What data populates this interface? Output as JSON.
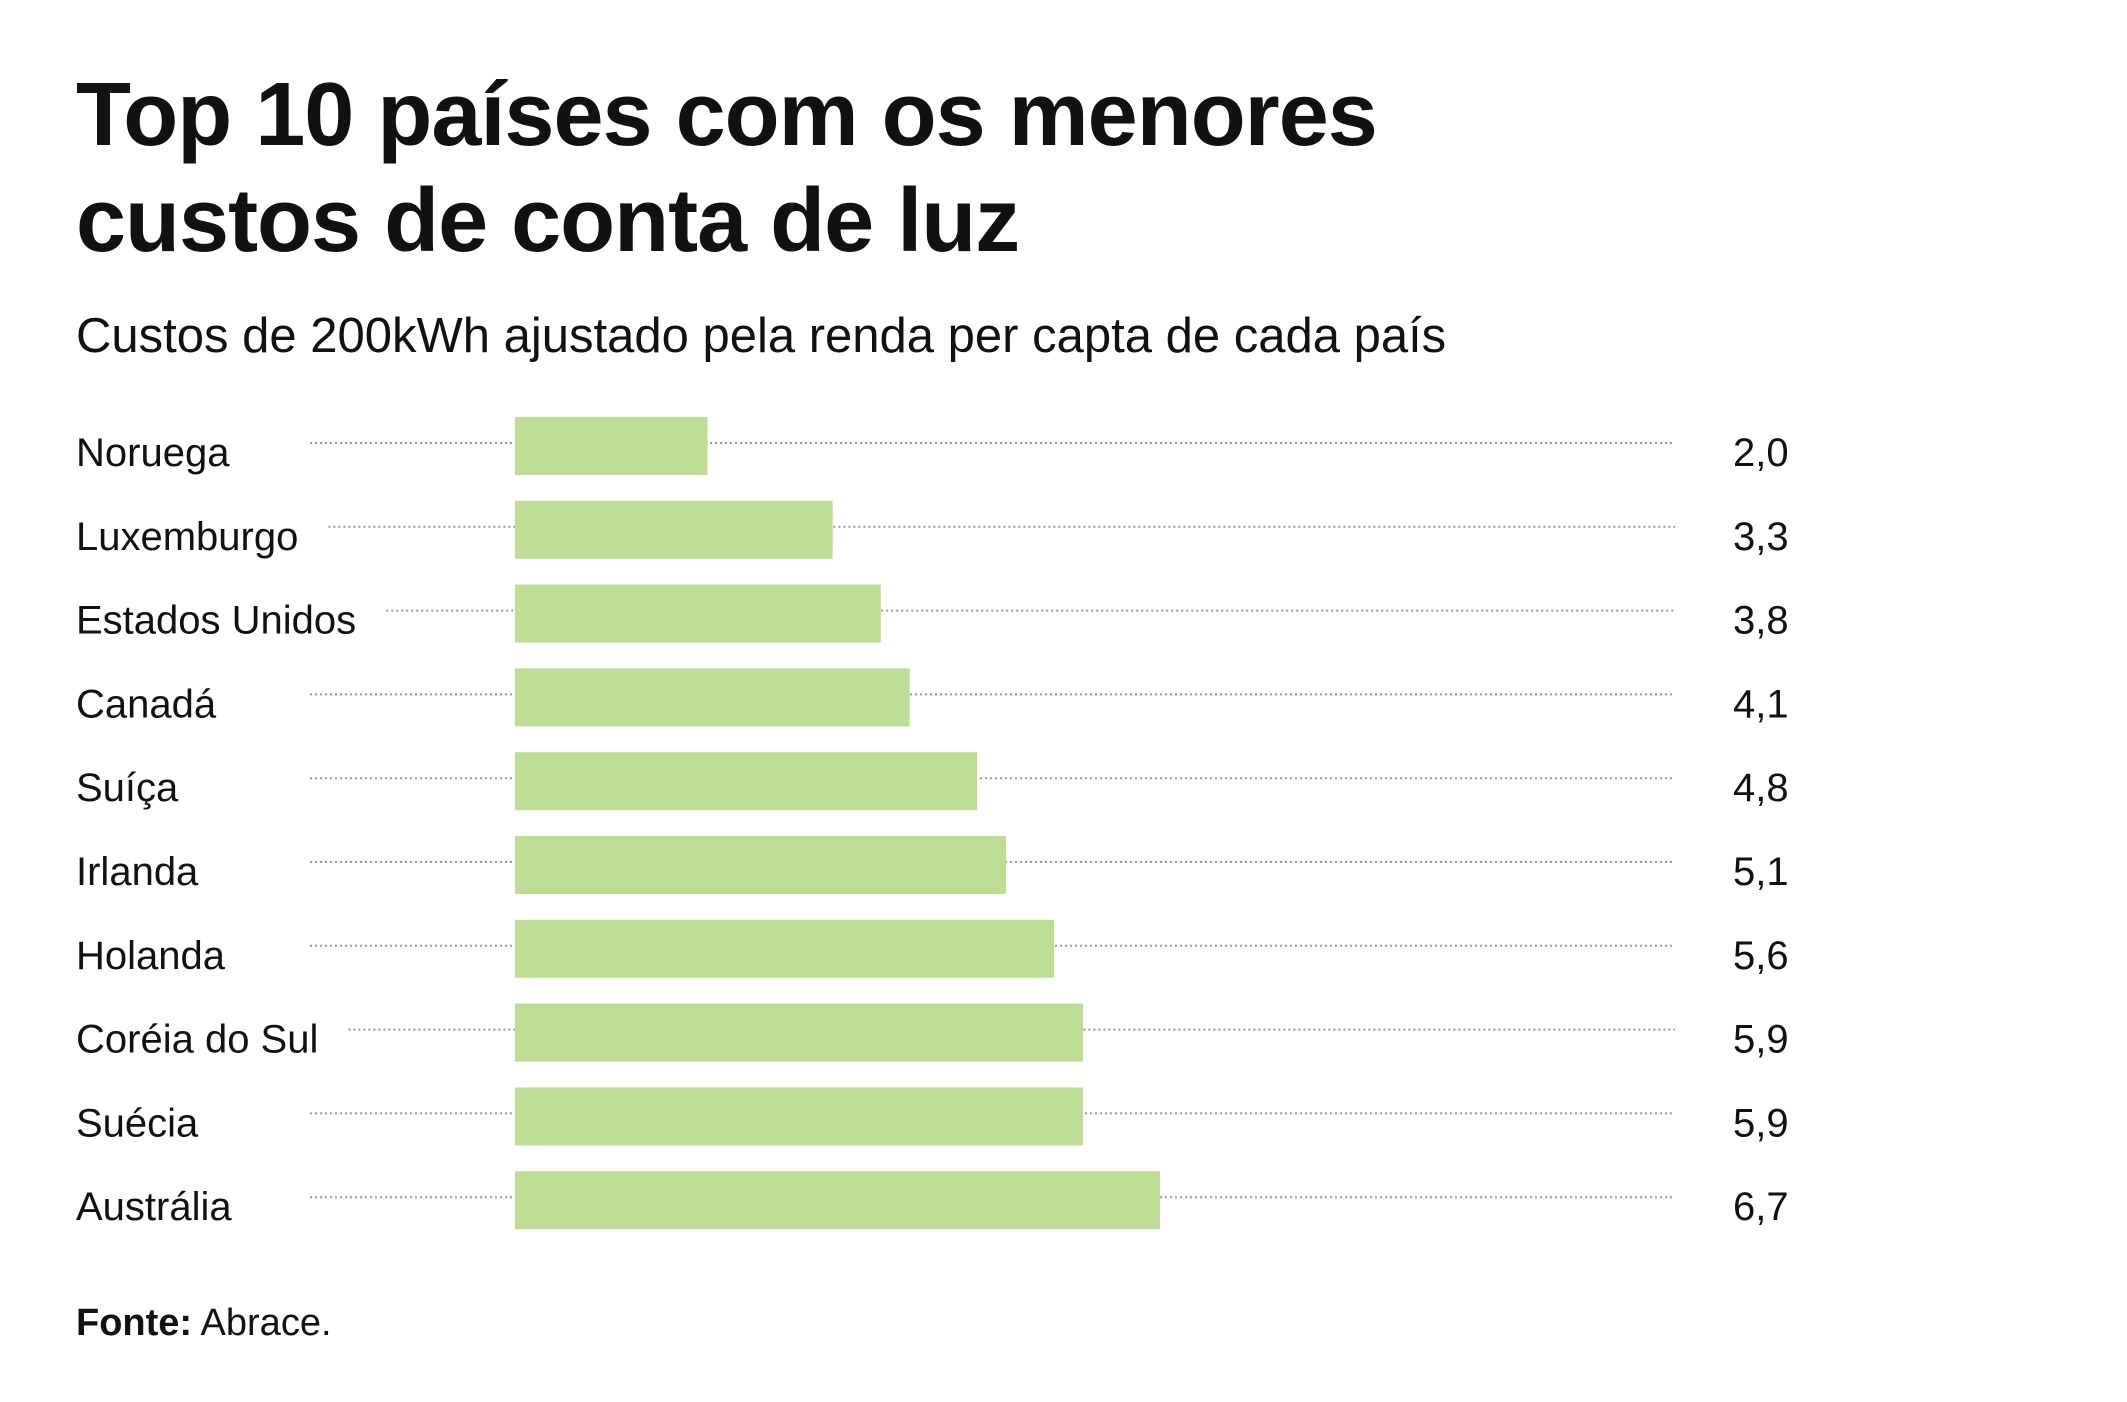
{
  "chart_data": {
    "type": "bar",
    "orientation": "horizontal",
    "title": "Top 10 países com os menores custos de conta de luz",
    "subtitle": "Custos de 200kWh ajustado pela renda per capta de cada país",
    "categories": [
      "Noruega",
      "Luxemburgo",
      "Estados Unidos",
      "Canadá",
      "Suíça",
      "Irlanda",
      "Holanda",
      "Coréia do Sul",
      "Suécia",
      "Austrália"
    ],
    "values": [
      2.0,
      3.3,
      3.8,
      4.1,
      4.8,
      5.1,
      5.6,
      5.9,
      5.9,
      6.7
    ],
    "value_labels": [
      "2,0",
      "3,3",
      "3,8",
      "4,1",
      "4,8",
      "5,1",
      "5,6",
      "5,9",
      "5,9",
      "6,7"
    ],
    "xlim": [
      0,
      12
    ],
    "bar_color": "#bddd94",
    "leader_line_color": "#999999",
    "grid": false,
    "legend": "none"
  },
  "source": {
    "label": "Fonte:",
    "value": "Abrace."
  }
}
